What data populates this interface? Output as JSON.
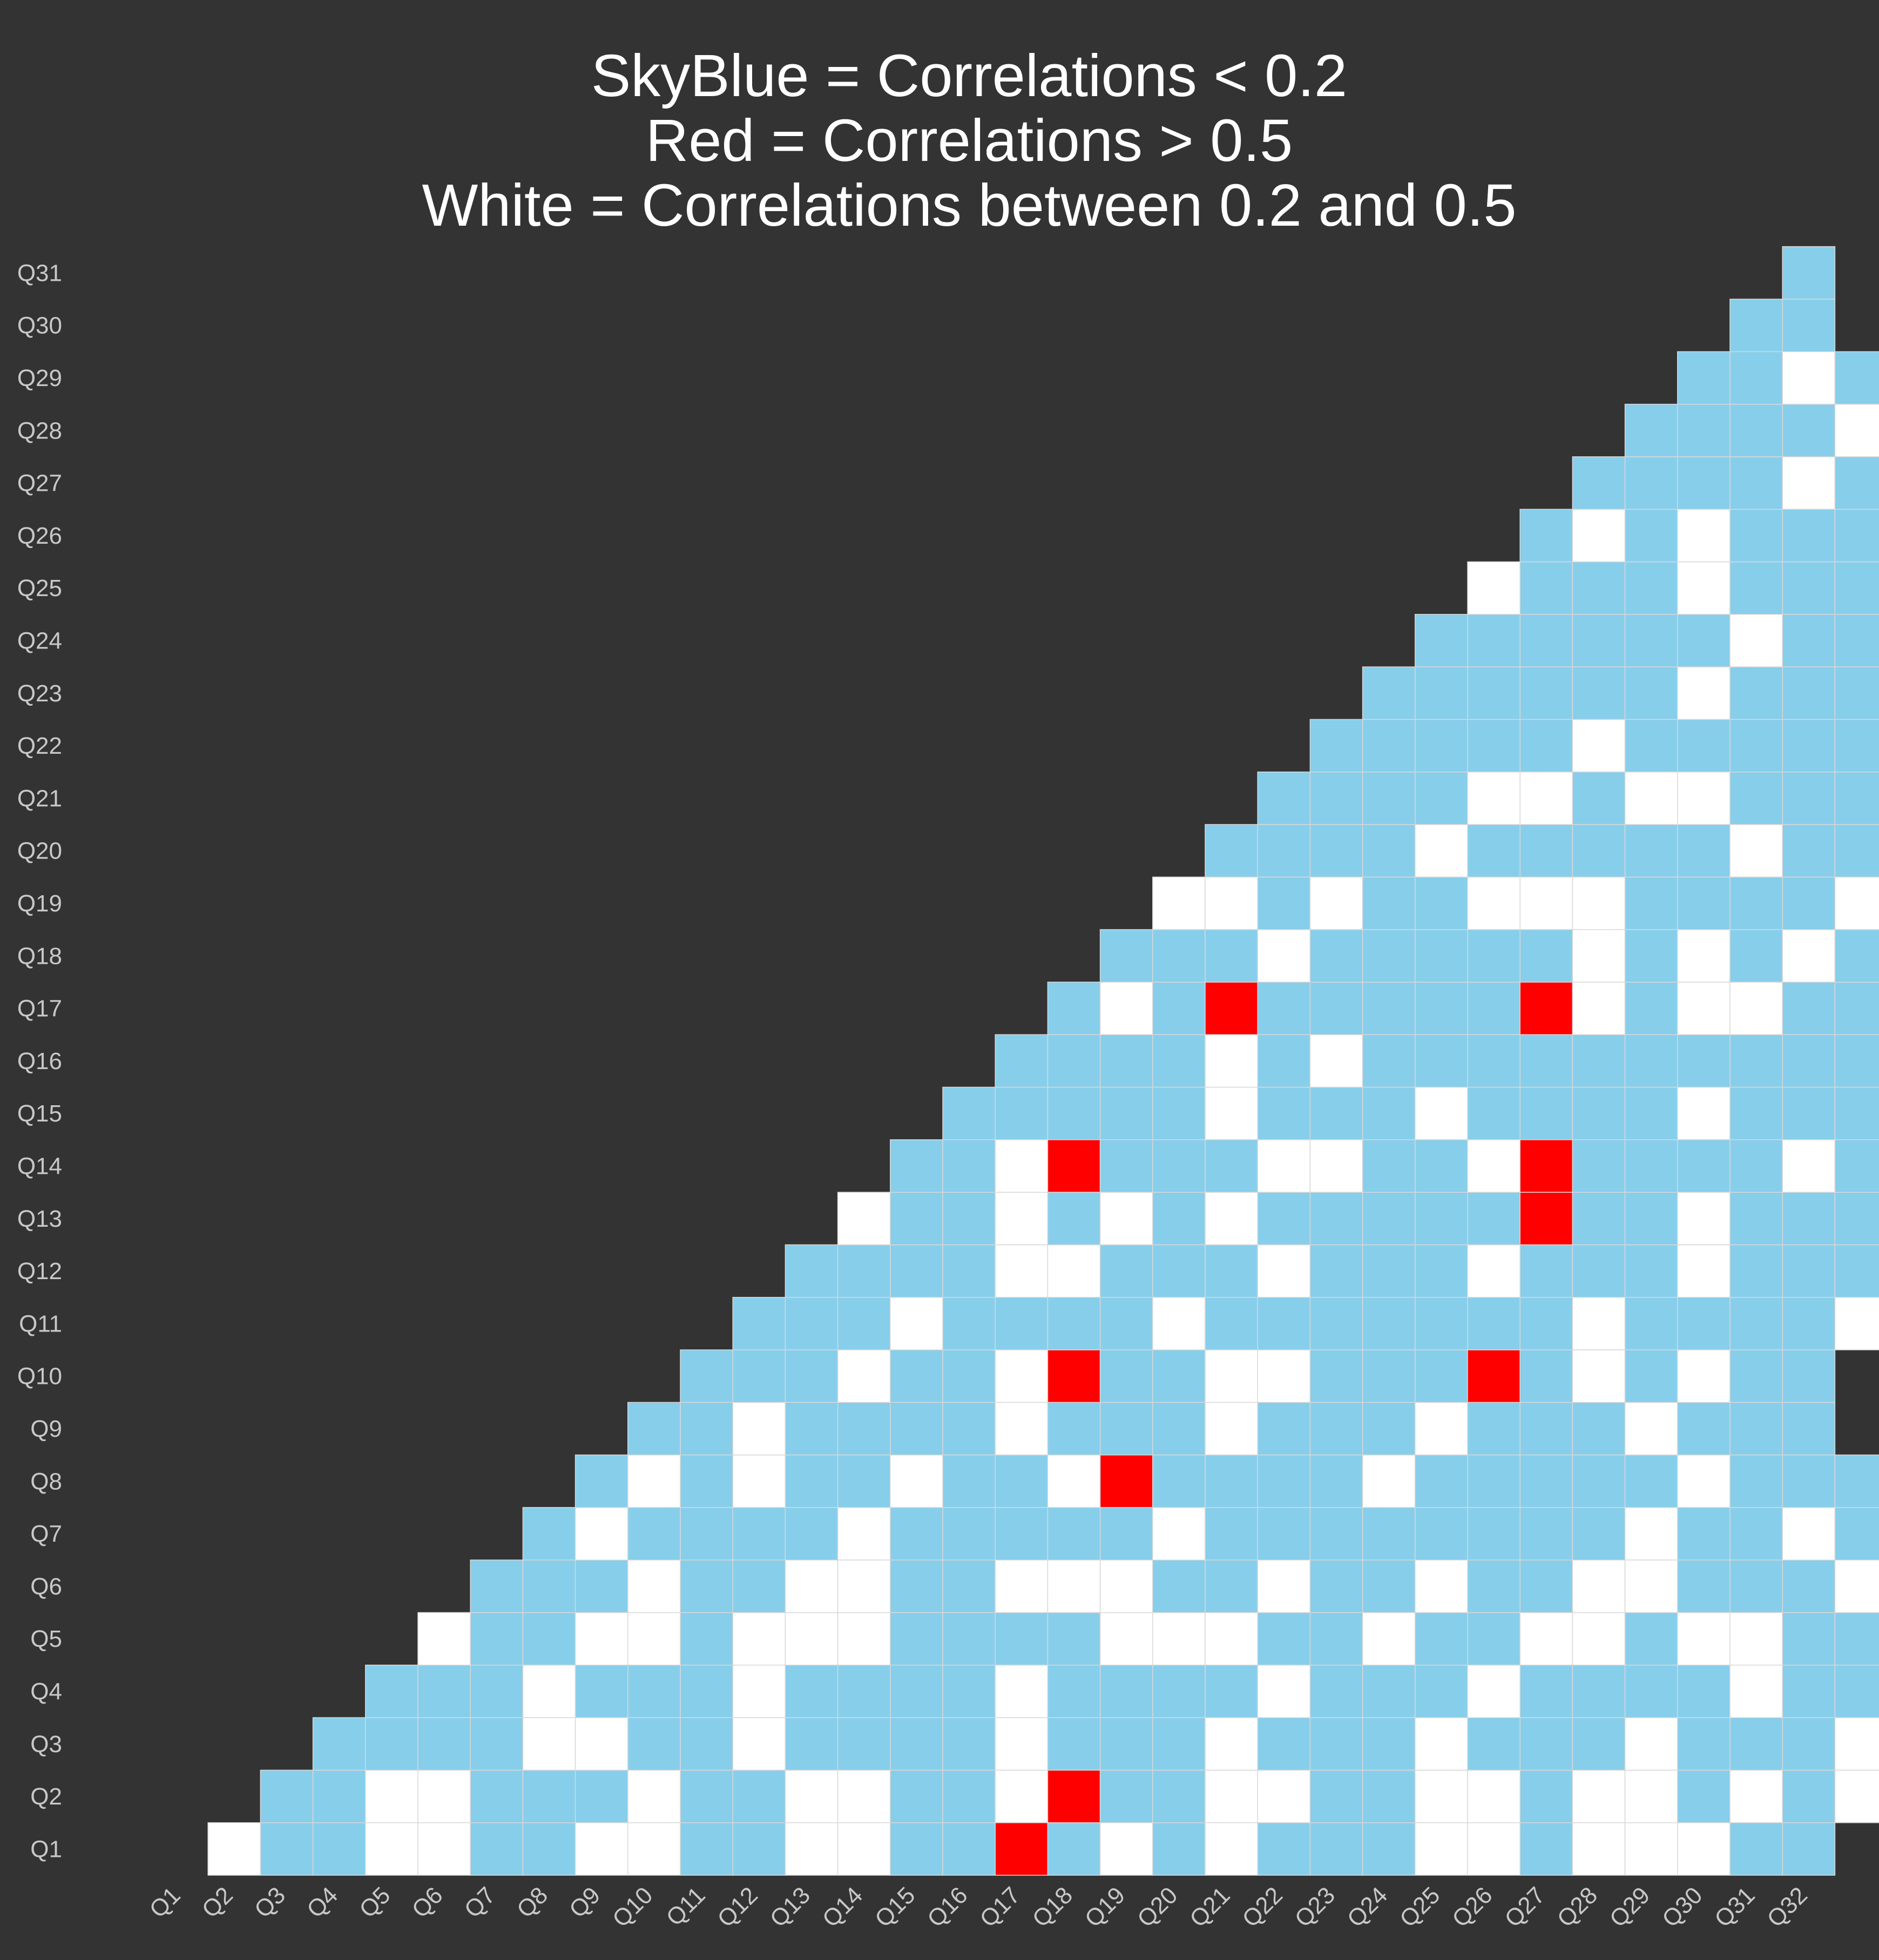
{
  "chart_data": {
    "type": "heatmap",
    "title_lines": [
      "SkyBlue = Correlations < 0.2",
      "Red = Correlations > 0.5",
      "White = Correlations between 0.2 and 0.5"
    ],
    "x_categories": [
      "Q1",
      "Q2",
      "Q3",
      "Q4",
      "Q5",
      "Q6",
      "Q7",
      "Q8",
      "Q9",
      "Q10",
      "Q11",
      "Q12",
      "Q13",
      "Q14",
      "Q15",
      "Q16",
      "Q17",
      "Q18",
      "Q19",
      "Q20",
      "Q21",
      "Q22",
      "Q23",
      "Q24",
      "Q25",
      "Q26",
      "Q27",
      "Q28",
      "Q29",
      "Q30",
      "Q31",
      "Q32"
    ],
    "y_categories": [
      "Q1",
      "Q2",
      "Q3",
      "Q4",
      "Q5",
      "Q6",
      "Q7",
      "Q8",
      "Q9",
      "Q10",
      "Q11",
      "Q12",
      "Q13",
      "Q14",
      "Q15",
      "Q16",
      "Q17",
      "Q18",
      "Q19",
      "Q20",
      "Q21",
      "Q22",
      "Q23",
      "Q24",
      "Q25",
      "Q26",
      "Q27",
      "Q28",
      "Q29",
      "Q30",
      "Q31"
    ],
    "legend": {
      "B": "SkyBlue",
      "W": "White",
      "R": "Red"
    },
    "colors": {
      "B": "#87ceeb",
      "W": "#ffffff",
      "R": "#ff0000",
      "background": "#333333",
      "gridline": "#d8d8d8"
    },
    "category_codes": {
      "B": "correlation < 0.2",
      "W": "correlation between 0.2 and 0.5",
      "R": "correlation > 0.5"
    },
    "rows": [
      "WBBWWBBWWBBWWBBRBWBWBBBWWBWWWBB",
      "BBWWBBBWBBWWBBWRBBWWBBWWBWWBWBW",
      "BBBBWWBBWBBBBWBBBWBBBWBBBWBBBWW",
      "BBBWBBBWBBBBWBBBBWBBBWBBBBWBBBW",
      "WBBWWBWWWBBBBWWWBBWBBWWBWWBBBBB",
      "BBBWBBWWBBWWWBBWBBWBBWWBBBWBBBB",
      "BWBBBBWBBBBBWBBBBBBBBWBBWBBBB",
      "BWBWBBWBBWRBBBBWBBBBBWBBB",
      "BBWBBBBWBBBWBBBWBBBWBBB",
      "BBBWBBWRBBWWBBBRBWBWBB",
      "BBBWBBBBWBBBBBBBWBBBBWB",
      "BBBBWWBBBWBBBWBBBWBBBBW",
      "WBBWBWBWBBBBBRBBWBBBBB",
      "BBWRBBBWWBBWRBBBBWBBB",
      "BBBBBWBBBWBBBBWBBBBWB",
      "BBBBWBWBBBBBBBBBBBBW",
      "BWBRBBBBBRWBWWBBBBB",
      "BBBWBBBBBWBWBWBWBW",
      "WWBWBBWWWBBBBWB",
      "BBBBWBBBBBWBBBBW",
      "BBBBWWBWWBBBB",
      "BBBBBWBBBBBBB",
      "BBBBBBWBBBBWB",
      "BBBBBBWBBBBW",
      "WBBBWBBBBB",
      "BWBWBBB",
      "BBBBWB",
      "BBBBW",
      "BBWB",
      "BB",
      "B"
    ]
  }
}
